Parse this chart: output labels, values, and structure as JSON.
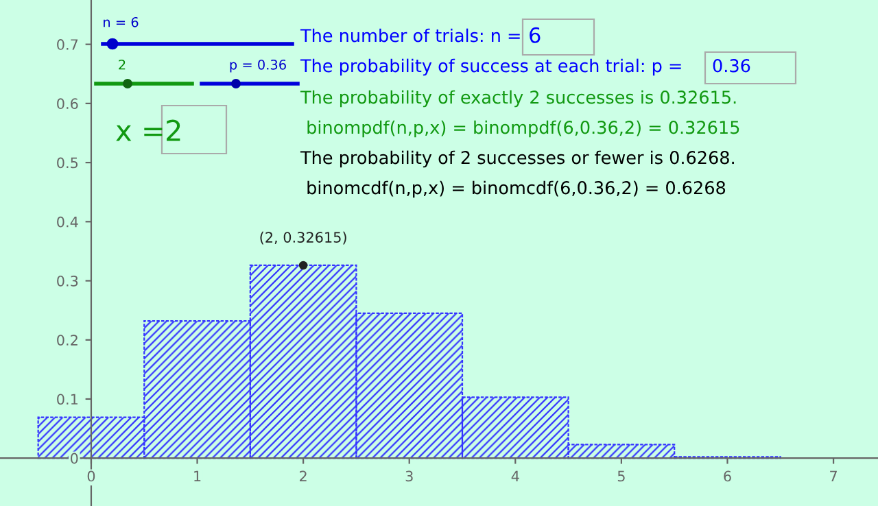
{
  "chart_data": {
    "type": "histogram",
    "bins": [
      -0.5,
      0.5,
      1.5,
      2.5,
      3.5,
      4.5,
      5.5,
      6.5
    ],
    "values": [
      0.069,
      0.232,
      0.32615,
      0.245,
      0.103,
      0.023,
      0.002
    ],
    "color": "#3333ff",
    "xlim": [
      -0.86,
      7.42
    ],
    "ylim": [
      -0.081,
      0.775
    ],
    "xticks": [
      0,
      1,
      2,
      3,
      4,
      5,
      6,
      7
    ],
    "yticks": [
      0,
      0.1,
      0.2,
      0.3,
      0.4,
      0.5,
      0.6,
      0.7
    ],
    "grid": false,
    "annotations": [
      "n = 6",
      "2",
      "p = 0.36",
      "The number of trials: n =",
      "6",
      "The probability of success at each trial: p =",
      "0.36",
      "The probability of exactly 2 successes is 0.32615.",
      " binompdf(n,p,x) = binompdf(6,0.36,2) = 0.32615",
      "The probability of 2 successes or fewer is 0.6268.",
      " binomcdf(n,p,x) = binomcdf(6,0.36,2) = 0.6268",
      "x =",
      "2",
      {
        "text": "(2, 0.32615)",
        "x": 2,
        "y": 0.32615
      }
    ]
  }
}
